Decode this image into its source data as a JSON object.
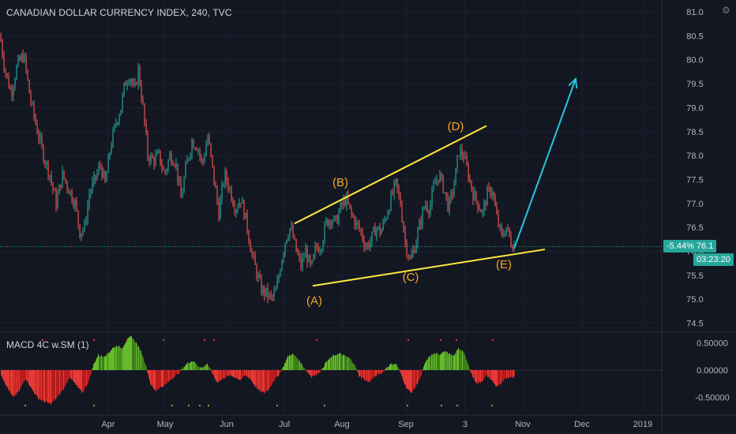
{
  "header": {
    "title": "CANADIAN DOLLAR CURRENCY INDEX, 240, TVC",
    "indicator_label": "MACD 4C w.SM (1)"
  },
  "last_price": {
    "change": "-5.44%",
    "price": "76.1",
    "label": "-5.44%  76.1",
    "timer": "03:23:20"
  },
  "colors": {
    "background": "#131722",
    "up_candle": "#26a69a",
    "down_candle": "#ef5350",
    "wave_lines": "#ffeb3b",
    "wave_labels": "#f6a821",
    "target_arrow": "#26c6da",
    "macd_up": "#66bb2a",
    "macd_down": "#e53935",
    "price_line": "#26a69a"
  },
  "icons": {
    "settings": "gear-icon"
  },
  "chart_data": [
    {
      "type": "candlestick",
      "title": "CANADIAN DOLLAR CURRENCY INDEX, 240, TVC",
      "y_ticks": [
        "81.0",
        "80.5",
        "80.0",
        "79.5",
        "79.0",
        "78.5",
        "78.0",
        "77.5",
        "77.0",
        "76.5",
        "76.0",
        "75.5",
        "75.0",
        "74.5"
      ],
      "x_ticks": [
        "Apr",
        "May",
        "Jun",
        "Jul",
        "Aug",
        "Sep",
        "3",
        "Nov",
        "Dec",
        "2019"
      ],
      "ylim": [
        74.4,
        81.1
      ],
      "grid": true,
      "current_price": 76.1,
      "price_path": [
        [
          0,
          80.5
        ],
        [
          6,
          79.8
        ],
        [
          14,
          79.3
        ],
        [
          22,
          79.9
        ],
        [
          30,
          80.1
        ],
        [
          38,
          79.2
        ],
        [
          46,
          78.6
        ],
        [
          55,
          78.0
        ],
        [
          63,
          77.6
        ],
        [
          71,
          77.0
        ],
        [
          79,
          77.6
        ],
        [
          87,
          77.3
        ],
        [
          95,
          77.0
        ],
        [
          101,
          76.4
        ],
        [
          107,
          76.5
        ],
        [
          113,
          77.2
        ],
        [
          120,
          77.5
        ],
        [
          127,
          77.8
        ],
        [
          133,
          77.4
        ],
        [
          140,
          78.2
        ],
        [
          147,
          78.7
        ],
        [
          153,
          79.0
        ],
        [
          158,
          79.5
        ],
        [
          164,
          79.7
        ],
        [
          170,
          79.3
        ],
        [
          175,
          79.8
        ],
        [
          181,
          79.0
        ],
        [
          187,
          78.0
        ],
        [
          194,
          77.9
        ],
        [
          201,
          78.0
        ],
        [
          208,
          77.6
        ],
        [
          215,
          78.0
        ],
        [
          222,
          77.9
        ],
        [
          229,
          77.1
        ],
        [
          236,
          77.8
        ],
        [
          243,
          78.3
        ],
        [
          250,
          78.2
        ],
        [
          256,
          77.8
        ],
        [
          263,
          78.4
        ],
        [
          270,
          77.6
        ],
        [
          277,
          76.8
        ],
        [
          284,
          77.6
        ],
        [
          291,
          77.3
        ],
        [
          298,
          76.9
        ],
        [
          305,
          77.1
        ],
        [
          312,
          76.6
        ],
        [
          318,
          76.0
        ],
        [
          324,
          75.6
        ],
        [
          331,
          75.2
        ],
        [
          338,
          75.1
        ],
        [
          344,
          75.0
        ],
        [
          350,
          75.2
        ],
        [
          356,
          75.8
        ],
        [
          362,
          76.3
        ],
        [
          368,
          76.5
        ],
        [
          375,
          76.0
        ],
        [
          381,
          75.7
        ],
        [
          387,
          76.0
        ],
        [
          394,
          75.6
        ],
        [
          400,
          76.1
        ],
        [
          406,
          76.1
        ],
        [
          413,
          76.6
        ],
        [
          419,
          76.7
        ],
        [
          425,
          76.6
        ],
        [
          431,
          76.9
        ],
        [
          438,
          77.1
        ],
        [
          444,
          76.8
        ],
        [
          450,
          76.6
        ],
        [
          457,
          76.4
        ],
        [
          463,
          76.1
        ],
        [
          469,
          76.2
        ],
        [
          476,
          76.5
        ],
        [
          482,
          76.4
        ],
        [
          488,
          76.7
        ],
        [
          495,
          77.1
        ],
        [
          501,
          77.4
        ],
        [
          507,
          77.0
        ],
        [
          513,
          76.2
        ],
        [
          519,
          75.8
        ],
        [
          525,
          76.1
        ],
        [
          532,
          76.6
        ],
        [
          538,
          77.0
        ],
        [
          544,
          76.9
        ],
        [
          550,
          77.4
        ],
        [
          556,
          77.6
        ],
        [
          562,
          77.3
        ],
        [
          568,
          76.9
        ],
        [
          575,
          77.4
        ],
        [
          581,
          78.1
        ],
        [
          587,
          78.0
        ],
        [
          593,
          77.6
        ],
        [
          599,
          77.2
        ],
        [
          605,
          77.0
        ],
        [
          611,
          76.8
        ],
        [
          617,
          77.2
        ],
        [
          623,
          77.3
        ],
        [
          629,
          76.7
        ],
        [
          635,
          76.3
        ],
        [
          641,
          76.5
        ],
        [
          647,
          76.2
        ],
        [
          651,
          76.1
        ]
      ],
      "annotations": [
        {
          "label": "(A)",
          "price": 75.3
        },
        {
          "label": "(B)",
          "price": 76.6
        },
        {
          "label": "(C)",
          "price": 75.7
        },
        {
          "label": "(D)",
          "price": 78.6
        },
        {
          "label": "(E)",
          "price": 76.0
        }
      ],
      "trendlines": [
        {
          "name": "upper",
          "from": {
            "bar": 373,
            "price": 76.58
          },
          "to": {
            "bar": 616,
            "price": 78.62
          }
        },
        {
          "name": "lower",
          "from": {
            "bar": 396,
            "price": 75.28
          },
          "to": {
            "bar": 690,
            "price": 76.04
          }
        }
      ],
      "projection": {
        "from_price": 76.06,
        "to_price": 79.6
      }
    },
    {
      "type": "bar",
      "title": "MACD 4C w.SM (1)",
      "y_ticks": [
        "0.50000",
        "0.00000",
        "-0.50000"
      ],
      "ylim": [
        -0.62,
        0.62
      ],
      "histogram_path": [
        [
          0,
          -0.05
        ],
        [
          8,
          -0.3
        ],
        [
          16,
          -0.5
        ],
        [
          24,
          -0.38
        ],
        [
          32,
          -0.15
        ],
        [
          40,
          -0.35
        ],
        [
          48,
          -0.52
        ],
        [
          56,
          -0.58
        ],
        [
          64,
          -0.62
        ],
        [
          72,
          -0.5
        ],
        [
          80,
          -0.35
        ],
        [
          88,
          -0.12
        ],
        [
          96,
          -0.28
        ],
        [
          104,
          -0.42
        ],
        [
          112,
          -0.2
        ],
        [
          118,
          0.1
        ],
        [
          124,
          0.28
        ],
        [
          130,
          0.25
        ],
        [
          136,
          0.3
        ],
        [
          142,
          0.4
        ],
        [
          148,
          0.45
        ],
        [
          154,
          0.4
        ],
        [
          160,
          0.55
        ],
        [
          166,
          0.62
        ],
        [
          172,
          0.5
        ],
        [
          178,
          0.35
        ],
        [
          184,
          0.1
        ],
        [
          190,
          -0.25
        ],
        [
          196,
          -0.38
        ],
        [
          202,
          -0.32
        ],
        [
          208,
          -0.28
        ],
        [
          214,
          -0.2
        ],
        [
          220,
          -0.12
        ],
        [
          226,
          -0.05
        ],
        [
          232,
          0.05
        ],
        [
          238,
          0.14
        ],
        [
          244,
          0.17
        ],
        [
          250,
          0.08
        ],
        [
          256,
          0.04
        ],
        [
          262,
          0.12
        ],
        [
          268,
          -0.05
        ],
        [
          274,
          -0.22
        ],
        [
          280,
          -0.18
        ],
        [
          286,
          -0.12
        ],
        [
          292,
          -0.1
        ],
        [
          298,
          -0.14
        ],
        [
          304,
          -0.18
        ],
        [
          310,
          -0.1
        ],
        [
          316,
          -0.15
        ],
        [
          322,
          -0.28
        ],
        [
          328,
          -0.38
        ],
        [
          334,
          -0.42
        ],
        [
          340,
          -0.35
        ],
        [
          346,
          -0.2
        ],
        [
          352,
          -0.1
        ],
        [
          358,
          0.05
        ],
        [
          364,
          0.25
        ],
        [
          370,
          0.3
        ],
        [
          376,
          0.22
        ],
        [
          382,
          0.1
        ],
        [
          388,
          -0.02
        ],
        [
          394,
          -0.12
        ],
        [
          400,
          -0.08
        ],
        [
          406,
          -0.02
        ],
        [
          412,
          0.14
        ],
        [
          418,
          0.22
        ],
        [
          424,
          0.28
        ],
        [
          430,
          0.3
        ],
        [
          436,
          0.26
        ],
        [
          442,
          0.22
        ],
        [
          448,
          0.12
        ],
        [
          454,
          -0.1
        ],
        [
          460,
          -0.16
        ],
        [
          466,
          -0.22
        ],
        [
          472,
          -0.15
        ],
        [
          478,
          -0.08
        ],
        [
          484,
          -0.04
        ],
        [
          490,
          0.06
        ],
        [
          496,
          0.12
        ],
        [
          502,
          0.1
        ],
        [
          508,
          -0.1
        ],
        [
          514,
          -0.32
        ],
        [
          520,
          -0.42
        ],
        [
          526,
          -0.3
        ],
        [
          532,
          -0.14
        ],
        [
          538,
          0.14
        ],
        [
          544,
          0.26
        ],
        [
          550,
          0.3
        ],
        [
          556,
          0.28
        ],
        [
          562,
          0.36
        ],
        [
          568,
          0.3
        ],
        [
          574,
          0.25
        ],
        [
          580,
          0.4
        ],
        [
          586,
          0.35
        ],
        [
          592,
          0.12
        ],
        [
          598,
          -0.12
        ],
        [
          604,
          -0.25
        ],
        [
          610,
          -0.2
        ],
        [
          616,
          -0.1
        ],
        [
          622,
          -0.18
        ],
        [
          628,
          -0.3
        ],
        [
          634,
          -0.26
        ],
        [
          640,
          -0.15
        ],
        [
          646,
          -0.12
        ],
        [
          651,
          -0.12
        ]
      ]
    }
  ]
}
